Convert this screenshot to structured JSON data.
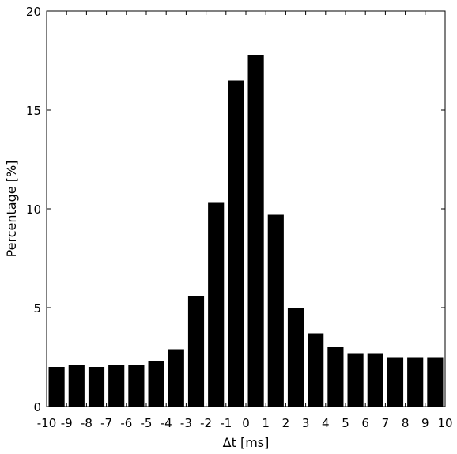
{
  "chart_data": {
    "type": "bar",
    "title": "",
    "xlabel": "Δt [ms]",
    "ylabel": "Percentage [%]",
    "xlim": [
      -10,
      10
    ],
    "ylim": [
      0,
      20
    ],
    "x_ticks": [
      -10,
      -9,
      -8,
      -7,
      -6,
      -5,
      -4,
      -3,
      -2,
      -1,
      0,
      1,
      2,
      3,
      4,
      5,
      6,
      7,
      8,
      9,
      10
    ],
    "y_ticks": [
      0,
      5,
      10,
      15,
      20
    ],
    "bin_edges": [
      -10,
      -9,
      -8,
      -7,
      -6,
      -5,
      -4,
      -3,
      -2,
      -1,
      0,
      1,
      2,
      3,
      4,
      5,
      6,
      7,
      8,
      9,
      10
    ],
    "values": [
      2.0,
      2.1,
      2.0,
      2.1,
      2.1,
      2.3,
      2.9,
      5.6,
      10.3,
      16.5,
      17.8,
      9.7,
      5.0,
      3.7,
      3.0,
      2.7,
      2.7,
      2.5,
      2.5,
      2.5
    ],
    "bar_color": "#000000",
    "grid": false,
    "legend": "none"
  }
}
